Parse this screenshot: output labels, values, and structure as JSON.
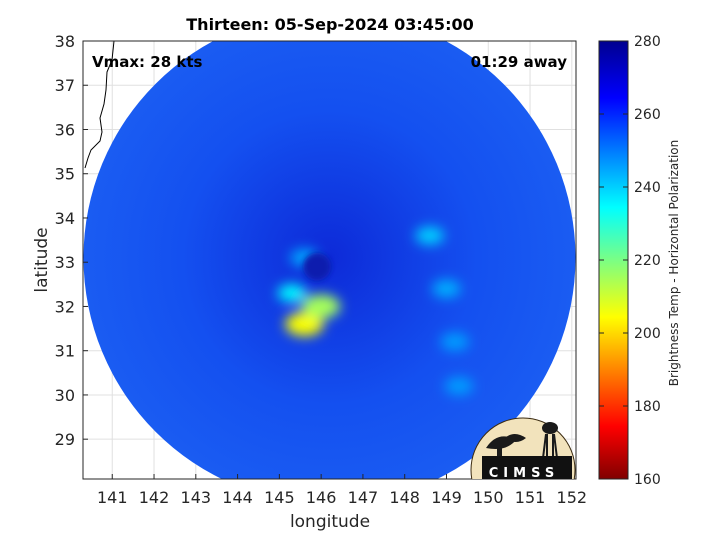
{
  "chart_data": {
    "type": "heatmap",
    "title": "Thirteen: 05-Sep-2024 03:45:00",
    "xlabel": "longitude",
    "ylabel": "latitude",
    "xlim": [
      140.3,
      152.1
    ],
    "ylim": [
      28.1,
      38.0
    ],
    "xticks": [
      141,
      142,
      143,
      144,
      145,
      146,
      147,
      148,
      149,
      150,
      151,
      152
    ],
    "yticks": [
      29,
      30,
      31,
      32,
      33,
      34,
      35,
      36,
      37,
      38
    ],
    "grid": true,
    "colorbar": {
      "label": "Brightness Temp - Horizontal Polarization",
      "range": [
        160,
        280
      ],
      "ticks": [
        160,
        180,
        200,
        220,
        240,
        260,
        280
      ]
    },
    "annotations": {
      "vmax": "Vmax: 28 kts",
      "time_away": "01:29 away"
    },
    "swath_center": {
      "lon": 146.2,
      "lat": 33.1
    },
    "storm_center": {
      "lon": 145.9,
      "lat": 32.9
    },
    "features": [
      {
        "lon": 145.6,
        "lat": 31.6,
        "value": 205
      },
      {
        "lon": 146.0,
        "lat": 32.0,
        "value": 215
      },
      {
        "lon": 145.3,
        "lat": 32.3,
        "value": 235
      },
      {
        "lon": 145.6,
        "lat": 33.1,
        "value": 245
      },
      {
        "lon": 148.6,
        "lat": 33.6,
        "value": 240
      },
      {
        "lon": 149.0,
        "lat": 32.4,
        "value": 244
      },
      {
        "lon": 149.2,
        "lat": 31.2,
        "value": 246
      },
      {
        "lon": 149.3,
        "lat": 30.2,
        "value": 246
      }
    ]
  },
  "logo": {
    "text": "CIMSS"
  }
}
